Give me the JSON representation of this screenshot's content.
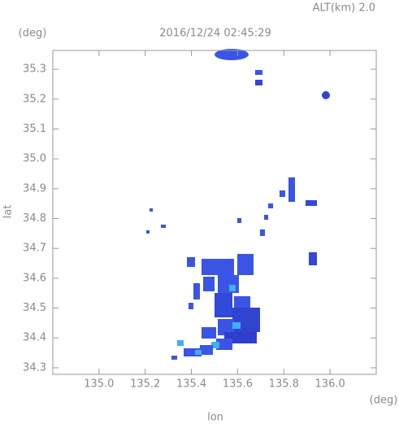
{
  "chart_data": {
    "type": "map",
    "title": "2016/12/24 02:45:29",
    "subtitle": "ALT(km) 2.0",
    "x_label": "lon",
    "y_label": "lat",
    "x_unit": "(deg)",
    "y_unit": "(deg)",
    "xlim": [
      134.8,
      136.2
    ],
    "ylim": [
      34.278,
      35.363
    ],
    "xticks": [
      {
        "value": 135,
        "label": "135.0"
      },
      135.2,
      135.4,
      135.6,
      135.8,
      {
        "value": 136,
        "label": "136.0"
      }
    ],
    "yticks": [
      34.3,
      34.4,
      34.5,
      34.6,
      34.7,
      34.8,
      34.9,
      {
        "value": 35,
        "label": "35.0"
      },
      35.1,
      35.2,
      35.3
    ]
  }
}
